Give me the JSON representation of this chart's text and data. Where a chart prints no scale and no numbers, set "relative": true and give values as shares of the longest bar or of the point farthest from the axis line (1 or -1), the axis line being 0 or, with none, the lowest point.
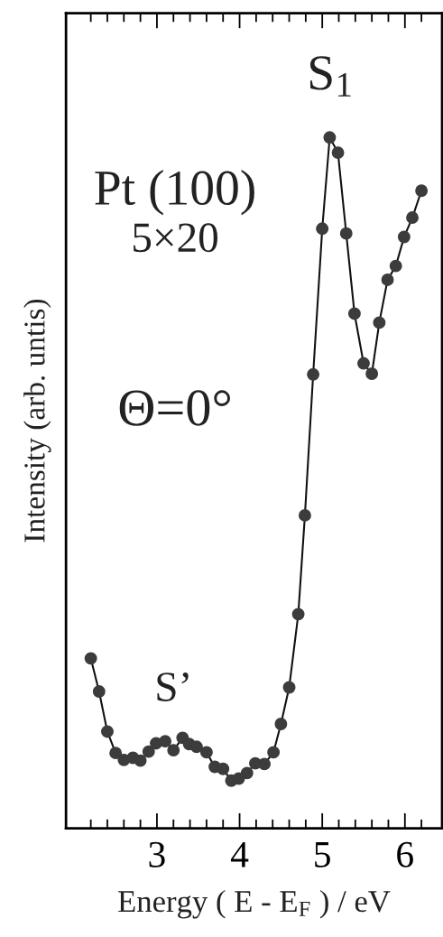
{
  "chart_data": {
    "type": "line",
    "relative": true,
    "xlabel": "Energy ( E - E$_{F}$ ) / eV",
    "ylabel": "Intensity (arb. untis)",
    "xlim": [
      1.9,
      6.45
    ],
    "xticks": [
      {
        "value": 2.2,
        "label": null
      },
      {
        "value": 2.4,
        "label": null
      },
      {
        "value": 2.6,
        "label": null
      },
      {
        "value": 2.8,
        "label": null
      },
      3,
      {
        "value": 3.2,
        "label": null
      },
      {
        "value": 3.4,
        "label": null
      },
      {
        "value": 3.6,
        "label": null
      },
      {
        "value": 3.8,
        "label": null
      },
      4,
      {
        "value": 4.2,
        "label": null
      },
      {
        "value": 4.4,
        "label": null
      },
      {
        "value": 4.6,
        "label": null
      },
      {
        "value": 4.8,
        "label": null
      },
      5,
      {
        "value": 5.2,
        "label": null
      },
      {
        "value": 5.4,
        "label": null
      },
      {
        "value": 5.6,
        "label": null
      },
      {
        "value": 5.8,
        "label": null
      },
      6,
      {
        "value": 6.2,
        "label": null
      }
    ],
    "marker": "circle",
    "line_style": "solid",
    "grid": false,
    "annotations": [
      {
        "text": "S$_{1}$",
        "x": 5.1,
        "y": 1.0
      },
      {
        "text": "S’",
        "x": 3.2,
        "y": 0.13
      },
      "Pt (100)",
      "5×20",
      "Θ=0°"
    ],
    "series": [
      {
        "color": "#3c3c3c",
        "x": [
          2.2,
          2.3,
          2.4,
          2.5,
          2.6,
          2.71,
          2.8,
          2.9,
          2.99,
          3.1,
          3.2,
          3.31,
          3.39,
          3.48,
          3.6,
          3.7,
          3.8,
          3.9,
          3.99,
          4.09,
          4.19,
          4.3,
          4.41,
          4.5,
          4.6,
          4.71,
          4.79,
          4.89,
          5.0,
          5.09,
          5.19,
          5.29,
          5.39,
          5.5,
          5.6,
          5.69,
          5.79,
          5.89,
          5.99,
          6.09,
          6.2
        ],
        "values": [
          0.246,
          0.198,
          0.14,
          0.109,
          0.099,
          0.102,
          0.098,
          0.111,
          0.123,
          0.126,
          0.113,
          0.131,
          0.122,
          0.118,
          0.11,
          0.089,
          0.086,
          0.069,
          0.072,
          0.08,
          0.094,
          0.093,
          0.11,
          0.151,
          0.204,
          0.31,
          0.453,
          0.657,
          0.868,
          1.0,
          0.978,
          0.861,
          0.745,
          0.673,
          0.658,
          0.732,
          0.794,
          0.814,
          0.856,
          0.884,
          0.923
        ]
      }
    ]
  }
}
